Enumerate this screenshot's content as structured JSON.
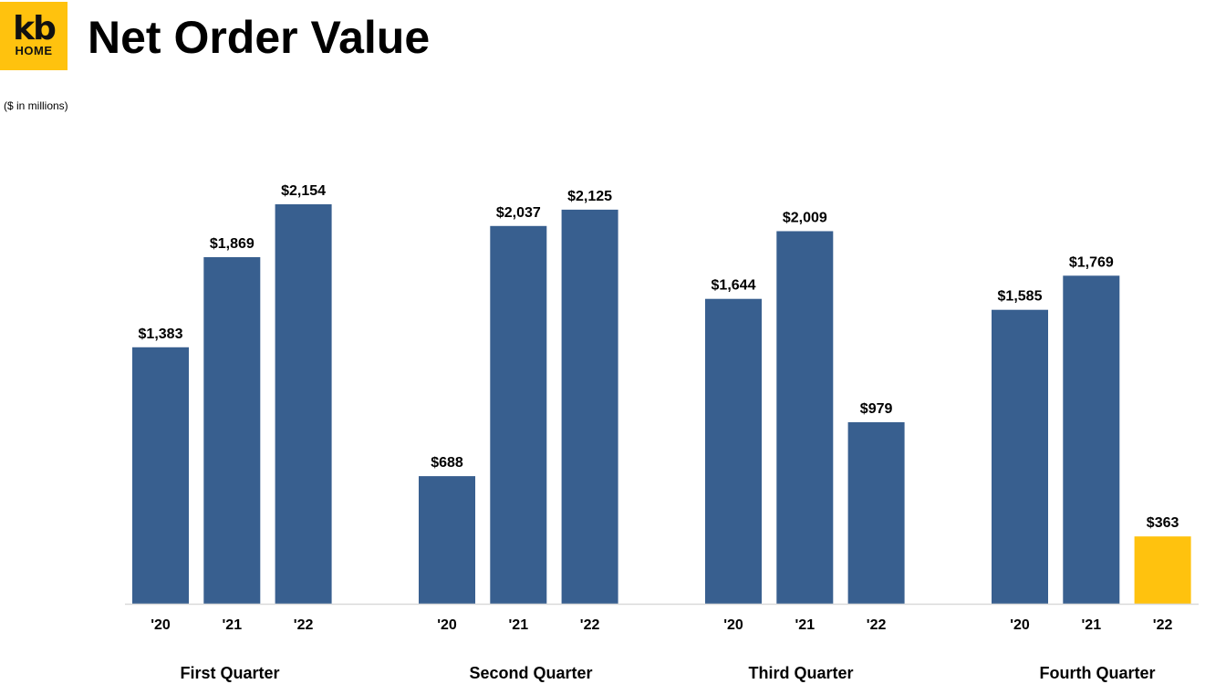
{
  "logo": {
    "top_text": "kb",
    "bottom_text": "HOME",
    "color": "#FFC20E"
  },
  "header": {
    "title": "Net Order Value",
    "units": "($ in millions)"
  },
  "chart_data": {
    "type": "bar",
    "title": "Net Order Value",
    "ylabel": "",
    "xlabel": "",
    "ylim": [
      0,
      2154
    ],
    "grid": false,
    "legend": "none",
    "groups": [
      {
        "name": "First Quarter",
        "categories": [
          "'20",
          "'21",
          "'22"
        ],
        "values": [
          1383,
          1869,
          2154
        ],
        "labels": [
          "$1,383",
          "$1,869",
          "$2,154"
        ]
      },
      {
        "name": "Second Quarter",
        "categories": [
          "'20",
          "'21",
          "'22"
        ],
        "values": [
          688,
          2037,
          2125
        ],
        "labels": [
          "$688",
          "$2,037",
          "$2,125"
        ]
      },
      {
        "name": "Third Quarter",
        "categories": [
          "'20",
          "'21",
          "'22"
        ],
        "values": [
          1644,
          2009,
          979
        ],
        "labels": [
          "$1,644",
          "$2,009",
          "$979"
        ]
      },
      {
        "name": "Fourth Quarter",
        "categories": [
          "'20",
          "'21",
          "'22"
        ],
        "values": [
          1585,
          1769,
          363
        ],
        "labels": [
          "$1,585",
          "$1,769",
          "$363"
        ]
      }
    ],
    "colors": {
      "bar": "#385F8F",
      "highlight": "#FFC20E",
      "axis": "#D9D9D9"
    },
    "highlight": {
      "group": 3,
      "index": 2
    }
  }
}
